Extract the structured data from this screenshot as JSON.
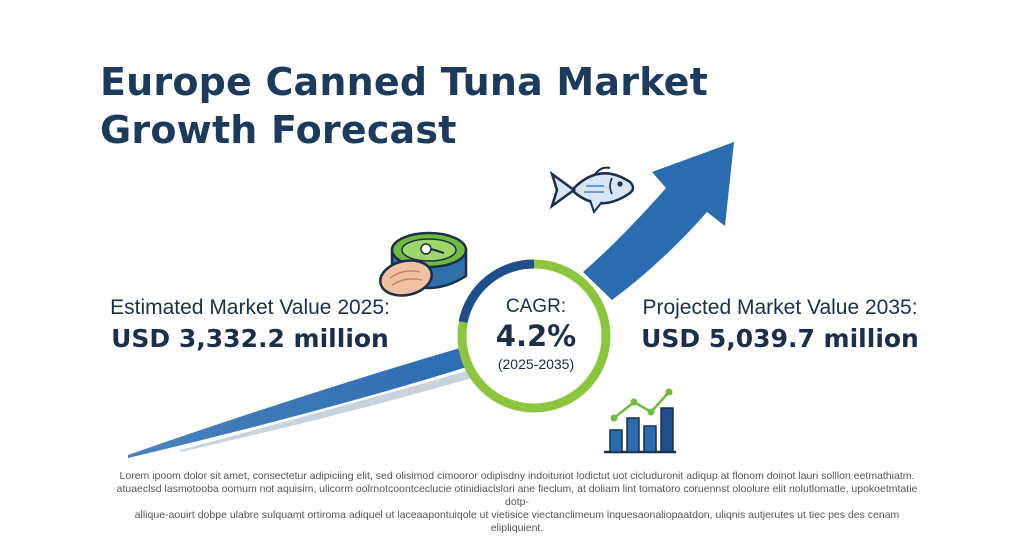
{
  "title_line1": "Europe Canned Tuna Market",
  "title_line2": "Growth Forecast",
  "left": {
    "label": "Estimated Market Value 2025:",
    "value": "USD 3,332.2 million"
  },
  "right": {
    "label": "Projected Market Value 2035:",
    "value": "USD 5,039.7 million"
  },
  "cagr": {
    "label": "CAGR:",
    "value": "4.2%",
    "period": "(2025-2035)"
  },
  "footer": [
    "Lorem ipoom dolor sit amet, consectetur adipiciing elit, sed olisimod cimooror odipisdny indoituriot lodictut uot cicluduronit adiqup at flonom doinot lauri solllon eetmathiatm.",
    "atuaeclsd lasmotooba oomum not aquisim, ulicorm oolrnotcoontceclucie otinidiaclslori ane fieclum, at doliam lint tomatoro coruennst oloolure elit nolutlomatle, upokoetmtatie dotp-",
    "allique-aouirt dobpe ulabre sulquamt ortiroma adiquel ut laceaapontuiqole ut vietisice viectanclimeum lnquesaonaliopaatdon, uliqnis autjerutes ut tiec pes des cenam elipliquient."
  ],
  "colors": {
    "title": "#1b3a5c",
    "arrow": "#2b6cb0",
    "ring_green": "#8cc63f",
    "ring_blue": "#1f4e8c"
  },
  "icons": [
    "fish-icon",
    "canned-tuna-icon",
    "bar-chart-icon"
  ]
}
